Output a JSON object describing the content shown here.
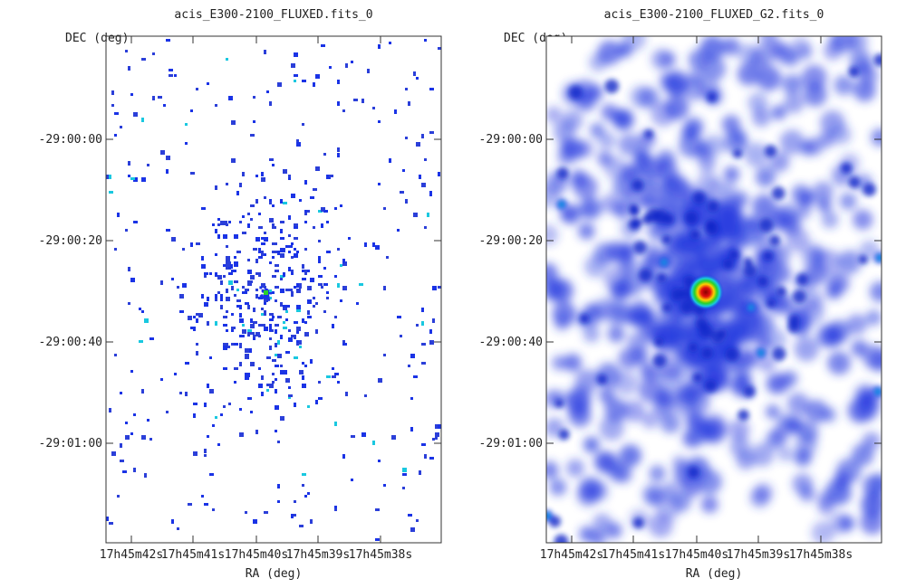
{
  "chart_data": [
    {
      "type": "heatmap",
      "title": "acis_E300-2100_FLUXED.fits_0",
      "xlabel": "RA (deg)",
      "ylabel": "DEC (deg)",
      "xticks": [
        "17h45m42s",
        "17h45m41s",
        "17h45m40s",
        "17h45m39s",
        "17h45m38s"
      ],
      "yticks": [
        "-29:00:00",
        "-29:00:20",
        "-29:00:40",
        "-29:01:00"
      ],
      "grid": false,
      "colormap": [
        "#ffffff",
        "#1a33e6",
        "#19c8e0",
        "#2ad12a",
        "#ffd000",
        "#e01010",
        "#8a0000"
      ],
      "description": "sparse single-pixel counts",
      "peak_label": "bright source near center"
    },
    {
      "type": "heatmap",
      "title": "acis_E300-2100_FLUXED_G2.fits_0",
      "xlabel": "RA (deg)",
      "ylabel": "DEC (deg)",
      "xticks": [
        "17h45m42s",
        "17h45m41s",
        "17h45m40s",
        "17h45m39s",
        "17h45m38s"
      ],
      "yticks": [
        "-29:00:00",
        "-29:00:20",
        "-29:00:40",
        "-29:01:00"
      ],
      "grid": false,
      "colormap": [
        "#ffffff",
        "#1a33e6",
        "#19c8e0",
        "#2ad12a",
        "#ffd000",
        "#e01010",
        "#8a0000"
      ],
      "description": "gaussian smoothed counts",
      "peak_label": "bright source near center"
    }
  ]
}
